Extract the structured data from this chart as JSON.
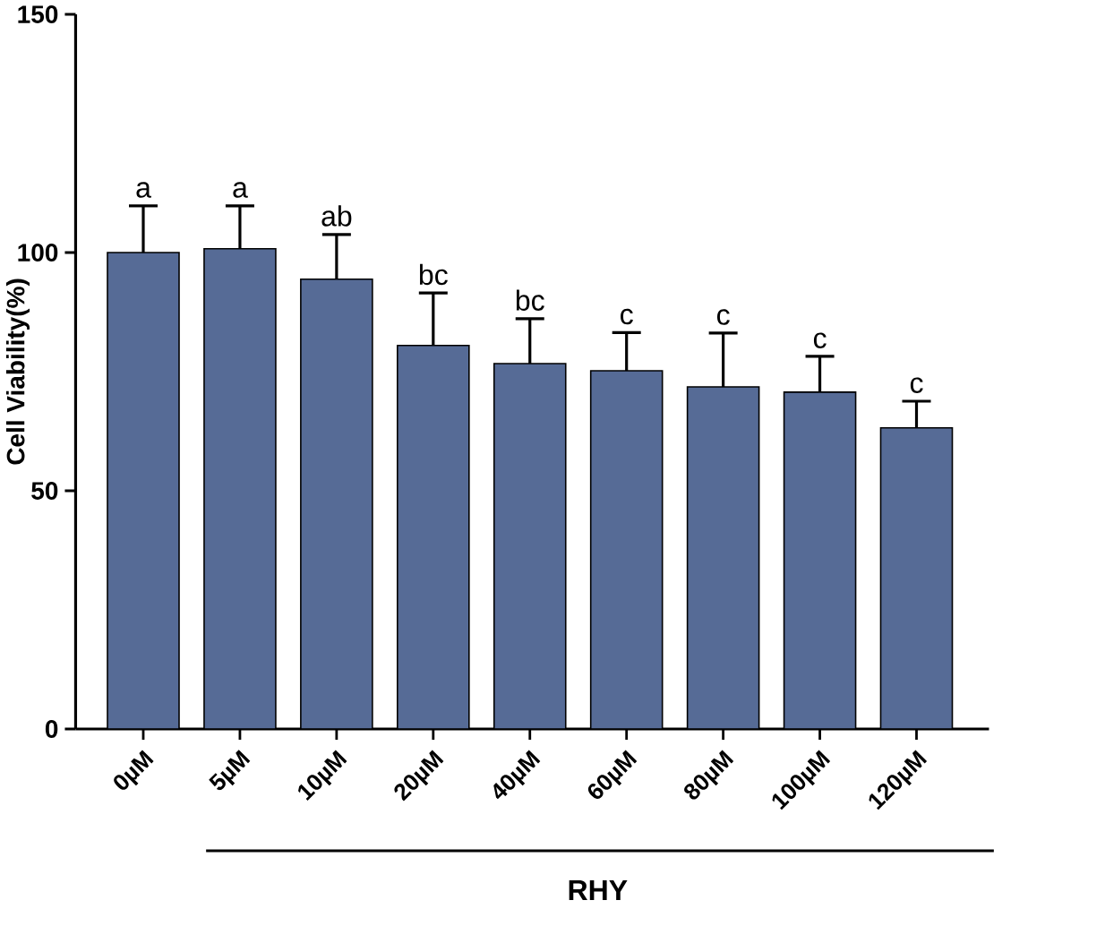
{
  "chart_data": {
    "type": "bar",
    "ylabel": "Cell Viability(%)",
    "categories": [
      "0µM",
      "5µM",
      "10µM",
      "20µM",
      "40µM",
      "60µM",
      "80µM",
      "100µM",
      "120µM"
    ],
    "values": [
      100,
      100.8,
      94.4,
      80.5,
      76.7,
      75.2,
      71.8,
      70.7,
      63.2
    ],
    "errors": [
      9.8,
      9,
      9.4,
      11,
      9.4,
      8,
      11.3,
      7.5,
      5.6
    ],
    "color": "#566b96",
    "ylim": [
      0,
      150
    ],
    "yticks": [
      0,
      50,
      100,
      150
    ],
    "annotations": [
      "a",
      "a",
      "ab",
      "bc",
      "bc",
      "c",
      "c",
      "c",
      "c",
      "RHY"
    ]
  }
}
